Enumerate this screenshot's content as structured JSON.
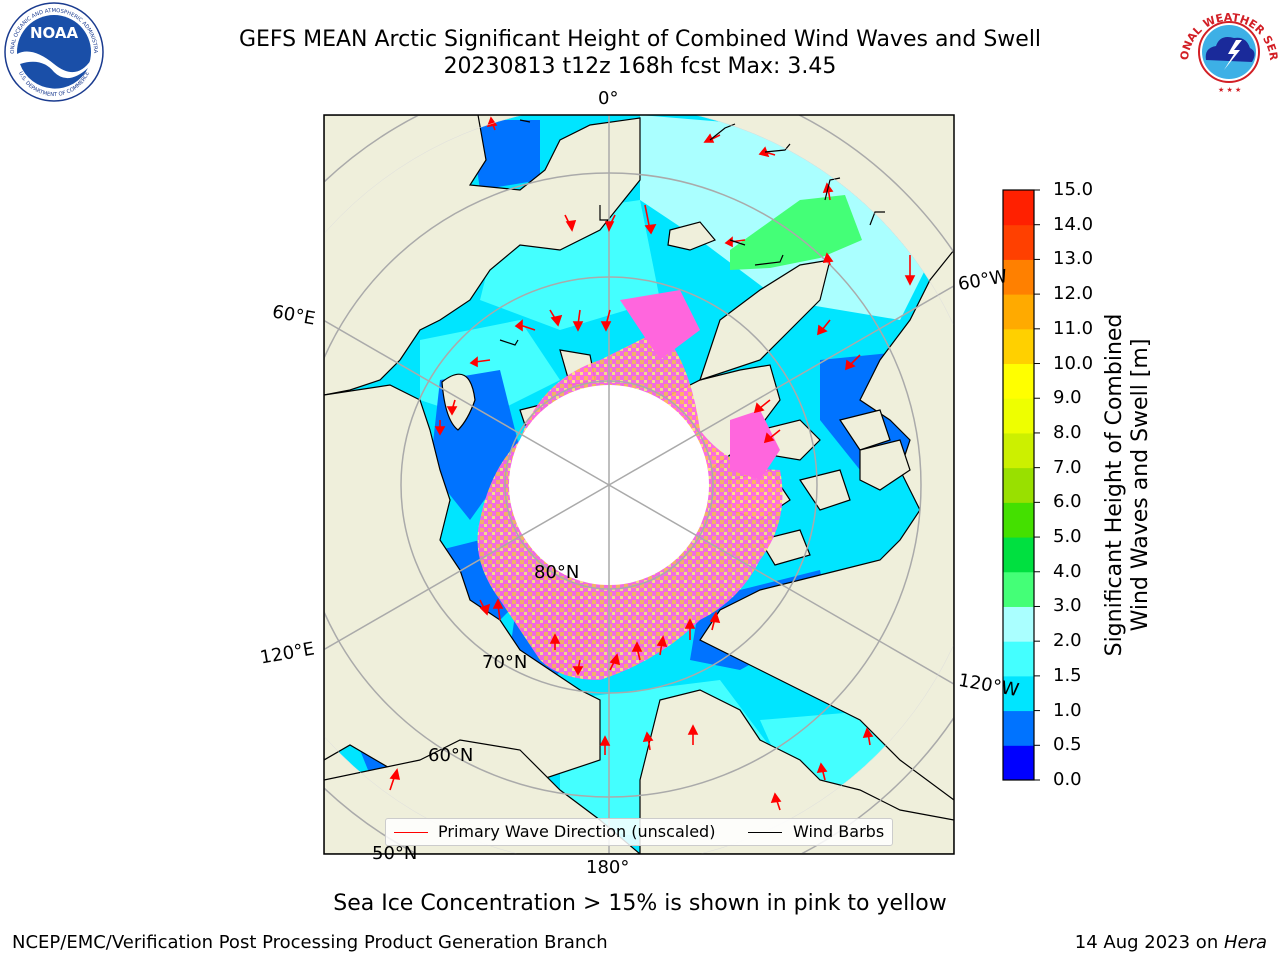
{
  "title": {
    "line1": "GEFS MEAN Arctic Significant Height of Combined Wind Waves and Swell",
    "line2": "20230813 t12z 168h fcst   Max: 3.45"
  },
  "map": {
    "longitude_labels": [
      "0°",
      "60°E",
      "60°W",
      "120°E",
      "120°W",
      "180°"
    ],
    "latitude_labels": [
      "80°N",
      "70°N",
      "60°N",
      "50°N"
    ],
    "colors": {
      "land": "#efefdb",
      "ocean_outside": "#efefdb",
      "ice_pink": "#ff66dd",
      "ice_orange": "#ffb060",
      "ice_yellow": "#ffe080",
      "wave_dir": "#ff0000",
      "wind_barb": "#000000",
      "grid": "#aaaaaa"
    }
  },
  "legend": {
    "wave_direction": "Primary Wave Direction (unscaled)",
    "wind_barbs": "Wind Barbs"
  },
  "colorbar": {
    "label_line1": "Significant Height of Combined",
    "label_line2": "Wind Waves and Swell [m]",
    "ticks": [
      "0.0",
      "0.5",
      "1.0",
      "1.5",
      "2.0",
      "3.0",
      "4.0",
      "5.0",
      "6.0",
      "7.0",
      "8.0",
      "9.0",
      "10.0",
      "11.0",
      "12.0",
      "13.0",
      "14.0",
      "15.0"
    ],
    "colors": [
      "#0000ff",
      "#0073ff",
      "#00e5ff",
      "#44ffff",
      "#aaffff",
      "#44ff77",
      "#00e040",
      "#44e000",
      "#99e000",
      "#ccf000",
      "#eeff00",
      "#ffff00",
      "#ffd000",
      "#ffaa00",
      "#ff8000",
      "#ff4000",
      "#ff2000"
    ]
  },
  "ice_note": "Sea Ice Concentration > 15% is shown in pink to yellow",
  "footer": {
    "left": "NCEP/EMC/Verification Post Processing Product Generation Branch",
    "right_date": "14 Aug 2023 on ",
    "right_host": "Hera"
  },
  "logos": {
    "noaa_text": "NOAA",
    "noaa_ring_top": "NATIONAL OCEANIC AND ATMOSPHERIC ADMINISTRATION",
    "noaa_ring_bottom": "U.S. DEPARTMENT OF COMMERCE",
    "nws_ring": "NATIONAL WEATHER SERVICE"
  }
}
